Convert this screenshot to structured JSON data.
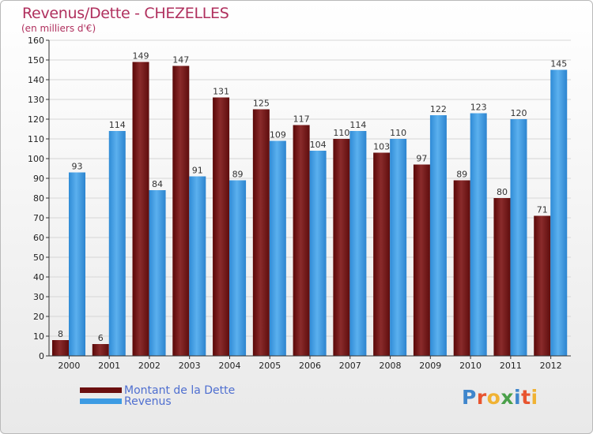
{
  "title": "Revenus/Dette - CHEZELLES",
  "subtitle": "(en milliers d'€)",
  "colors": {
    "title": "#b0305e",
    "dette": "#7a1c1c",
    "revenus": "#4ca3e6",
    "legend_text": "#4f6fd0"
  },
  "legend": [
    {
      "label": "Montant de la Dette",
      "color": "#6b0f0f"
    },
    {
      "label": "Revenus",
      "color": "#3d9be3"
    }
  ],
  "logo": {
    "text": "Proxiti",
    "letters": [
      "P",
      "r",
      "o",
      "x",
      "i",
      "t",
      "i"
    ],
    "colors": [
      "#3f86cc",
      "#e8542f",
      "#f0b233",
      "#4aa04a",
      "#3f86cc",
      "#e8542f",
      "#f0b233"
    ]
  },
  "chart_data": {
    "type": "bar",
    "title": "Revenus/Dette - CHEZELLES",
    "subtitle": "(en milliers d'€)",
    "categories": [
      "2000",
      "2001",
      "2002",
      "2003",
      "2004",
      "2005",
      "2006",
      "2007",
      "2008",
      "2009",
      "2010",
      "2011",
      "2012"
    ],
    "series": [
      {
        "name": "Montant de la Dette",
        "values": [
          8,
          6,
          149,
          147,
          131,
          125,
          117,
          110,
          103,
          97,
          89,
          80,
          71
        ]
      },
      {
        "name": "Revenus",
        "values": [
          93,
          114,
          84,
          91,
          89,
          109,
          104,
          114,
          110,
          122,
          123,
          120,
          145
        ]
      }
    ],
    "yticks": [
      0,
      10,
      20,
      30,
      40,
      50,
      60,
      70,
      80,
      90,
      100,
      110,
      120,
      130,
      140,
      150,
      160
    ],
    "ylim": [
      0,
      160
    ],
    "grid": true,
    "legend_position": "bottom-left"
  }
}
